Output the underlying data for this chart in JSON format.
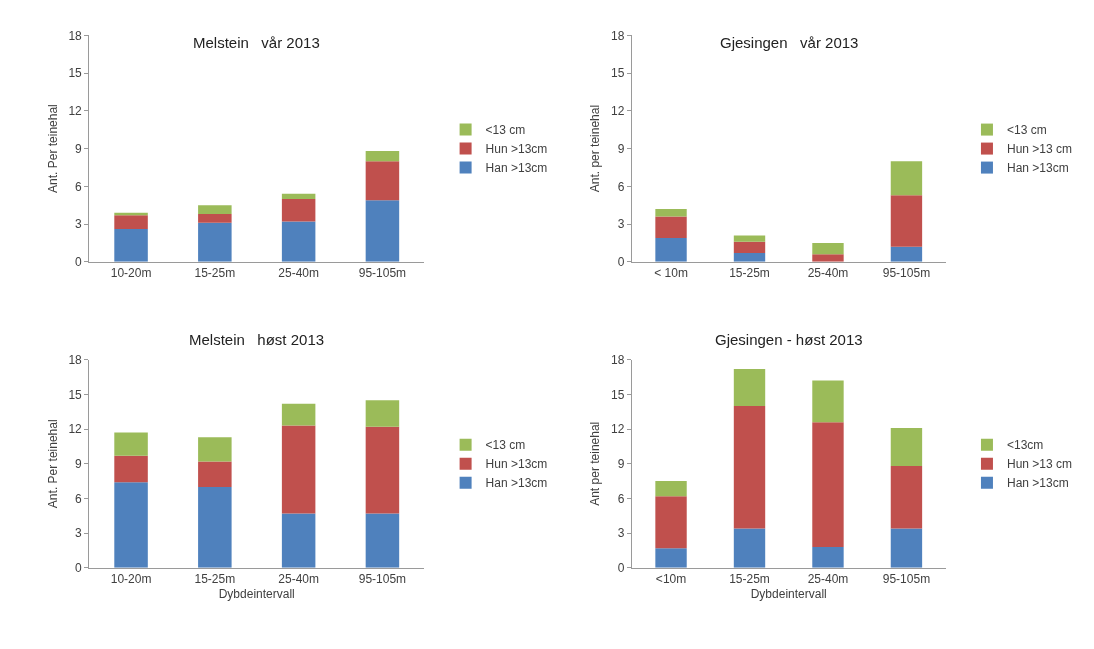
{
  "chart_data": [
    {
      "type": "bar",
      "title": "Melstein   vår 2013",
      "ylabel": "Ant. Per teinehal",
      "categories": [
        "10-20m",
        "15-25m",
        "25-40m",
        "95-105m"
      ],
      "stacked": true,
      "ylim": [
        0,
        18
      ],
      "yticks": [
        0,
        3,
        6,
        9,
        12,
        15,
        18
      ],
      "legend": "right",
      "series": [
        {
          "name": "Han >13cm",
          "color": "#4f81bd",
          "values": [
            2.6,
            3.1,
            3.2,
            4.9
          ]
        },
        {
          "name": "Hun >13cm",
          "color": "#c0504d",
          "values": [
            1.1,
            0.7,
            1.8,
            3.1
          ]
        },
        {
          "name": "<13 cm",
          "color": "#9bbb59",
          "values": [
            0.2,
            0.7,
            0.4,
            0.8
          ]
        }
      ]
    },
    {
      "type": "bar",
      "title": "Gjesingen   vår 2013",
      "ylabel": "Ant. per teinehal",
      "categories": [
        "< 10m",
        "15-25m",
        "25-40m",
        "95-105m"
      ],
      "stacked": true,
      "ylim": [
        0,
        18
      ],
      "yticks": [
        0,
        3,
        6,
        9,
        12,
        15,
        18
      ],
      "legend": "right",
      "series": [
        {
          "name": "Han >13cm",
          "color": "#4f81bd",
          "values": [
            1.9,
            0.7,
            0,
            1.2
          ]
        },
        {
          "name": "Hun >13 cm",
          "color": "#c0504d",
          "values": [
            1.7,
            0.9,
            0.6,
            4.1
          ]
        },
        {
          "name": "<13 cm",
          "color": "#9bbb59",
          "values": [
            0.6,
            0.5,
            0.9,
            2.7
          ]
        }
      ]
    },
    {
      "type": "bar",
      "title": "Melstein   høst 2013",
      "xlabel": "Dybdeintervall",
      "ylabel": "Ant. Per teinehal",
      "categories": [
        "10-20m",
        "15-25m",
        "25-40m",
        "95-105m"
      ],
      "stacked": true,
      "ylim": [
        0,
        18
      ],
      "yticks": [
        0,
        3,
        6,
        9,
        12,
        15,
        18
      ],
      "legend": "right",
      "series": [
        {
          "name": "Han >13cm",
          "color": "#4f81bd",
          "values": [
            7.4,
            7.0,
            4.7,
            4.7
          ]
        },
        {
          "name": "Hun >13cm",
          "color": "#c0504d",
          "values": [
            2.3,
            2.2,
            7.6,
            7.5
          ]
        },
        {
          "name": "<13 cm",
          "color": "#9bbb59",
          "values": [
            2.0,
            2.1,
            1.9,
            2.3
          ]
        }
      ]
    },
    {
      "type": "bar",
      "title": "Gjesingen - høst 2013",
      "xlabel": "Dybdeintervall",
      "ylabel": "Ant per teinehal",
      "categories": [
        "<10m",
        "15-25m",
        "25-40m",
        "95-105m"
      ],
      "stacked": true,
      "ylim": [
        0,
        18
      ],
      "yticks": [
        0,
        3,
        6,
        9,
        12,
        15,
        18
      ],
      "legend": "right",
      "series": [
        {
          "name": "Han >13cm",
          "color": "#4f81bd",
          "values": [
            1.7,
            3.4,
            1.8,
            3.4
          ]
        },
        {
          "name": "Hun >13 cm",
          "color": "#c0504d",
          "values": [
            4.5,
            10.6,
            10.8,
            5.4
          ]
        },
        {
          "name": "<13cm",
          "color": "#9bbb59",
          "values": [
            1.3,
            3.2,
            3.6,
            3.3
          ]
        }
      ]
    }
  ]
}
